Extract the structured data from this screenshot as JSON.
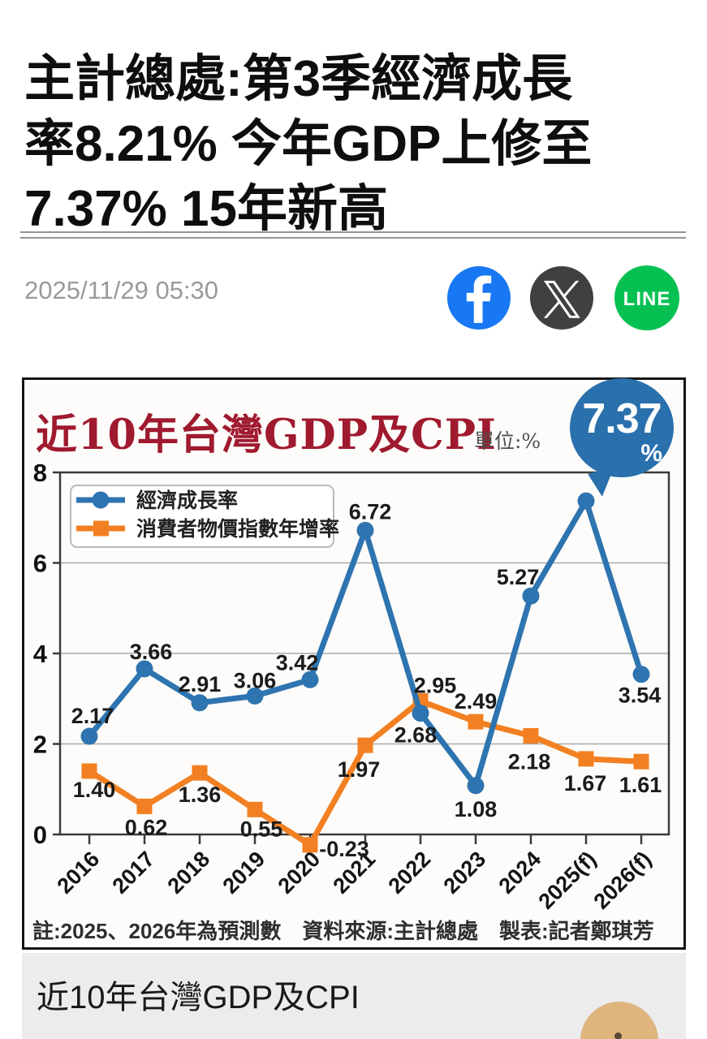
{
  "page": {
    "headline": {
      "lines": [
        "主計總處:第3季經濟成長",
        "率8.21% 今年GDP上修至",
        "7.37% 15年新高"
      ]
    },
    "date": "2025/11/29 05:30",
    "share": {
      "facebook_color": "#1877f2",
      "x_color": "#404040",
      "line_color": "#06c152",
      "line_label": "LINE"
    },
    "caption": "近10年台灣GDP及CPI",
    "mascot_color": "#ddb57d"
  },
  "chart_data": {
    "type": "line",
    "title": "近10年台灣GDP及CPI",
    "title_color": "#a01a2f",
    "unit_label": "單位:%",
    "categories": [
      "2016",
      "2017",
      "2018",
      "2019",
      "2020",
      "2021",
      "2022",
      "2023",
      "2024",
      "2025(f)",
      "2026(f)"
    ],
    "series": [
      {
        "name": "經濟成長率",
        "marker": "circle",
        "color": "#2e74b0",
        "values": [
          2.17,
          3.66,
          2.91,
          3.06,
          3.42,
          6.72,
          2.68,
          1.08,
          5.27,
          7.37,
          3.54
        ]
      },
      {
        "name": "消費者物價指數年增率",
        "marker": "square",
        "color": "#f28022",
        "values": [
          1.4,
          0.62,
          1.36,
          0.55,
          -0.23,
          1.97,
          2.95,
          2.49,
          2.18,
          1.67,
          1.61
        ]
      }
    ],
    "ylim": [
      0,
      8
    ],
    "yticks": [
      0,
      2,
      4,
      6,
      8
    ],
    "grid": true,
    "legend_position": "top-left",
    "callout": {
      "series": "經濟成長率",
      "category": "2025(f)",
      "value_text": "7.37",
      "percent_text": "%",
      "color": "#2a70ad"
    },
    "note": "註:2025、2026年為預測數　資料來源:主計總處　製表:記者鄭琪芳",
    "label_offsets": [
      [
        [
          4,
          -16
        ],
        [
          8,
          -12
        ],
        [
          0,
          -14
        ],
        [
          0,
          -10
        ],
        [
          -16,
          -12
        ],
        [
          6,
          -14
        ],
        [
          -6,
          36
        ],
        [
          0,
          38
        ],
        [
          -16,
          -14
        ],
        null,
        [
          -2,
          35
        ]
      ],
      [
        [
          6,
          32
        ],
        [
          2,
          35
        ],
        [
          0,
          36
        ],
        [
          8,
          33
        ],
        [
          42,
          14
        ],
        [
          -8,
          39
        ],
        [
          18,
          -10
        ],
        [
          0,
          -16
        ],
        [
          -2,
          41
        ],
        [
          -1,
          39
        ],
        [
          -1,
          38
        ]
      ]
    ]
  }
}
